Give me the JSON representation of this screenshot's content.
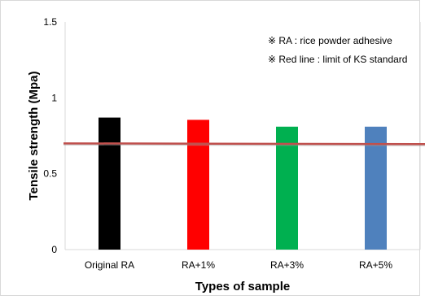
{
  "chart_data": {
    "type": "bar",
    "categories": [
      "Original RA",
      "RA+1%",
      "RA+3%",
      "RA+5%"
    ],
    "values": [
      0.87,
      0.855,
      0.81,
      0.81
    ],
    "bar_colors": [
      "#000000",
      "#ff0000",
      "#00b050",
      "#4f81bd"
    ],
    "xlabel": "Types of sample",
    "ylabel": "Tensile strength (Mpa)",
    "ylim": [
      0,
      1.5
    ],
    "yticks": [
      "0",
      "0.5",
      "1",
      "1.5"
    ],
    "ytick_values": [
      0,
      0.5,
      1,
      1.5
    ],
    "grid": false,
    "reference_line": {
      "y_start": 0.7,
      "y_end": 0.695,
      "color": "#c0504d"
    },
    "annotations": [
      "※ RA : rice powder adhesive",
      "※ Red line : limit of KS standard"
    ]
  }
}
